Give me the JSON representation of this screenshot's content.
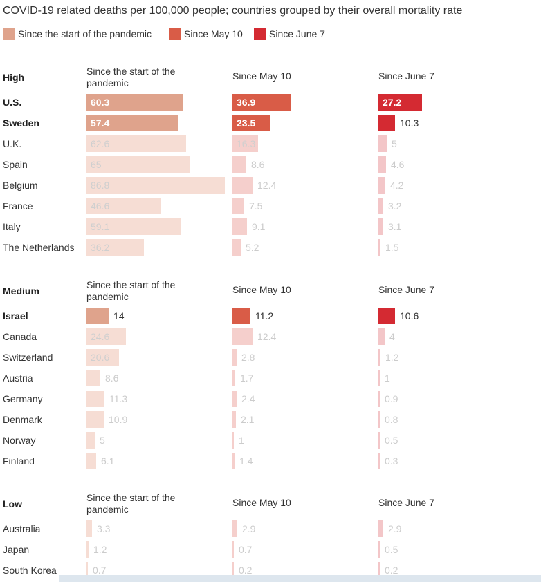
{
  "chart_data": {
    "type": "bar",
    "title": "COVID-19 related deaths per 100,000 people; countries grouped by their overall mortality rate",
    "legend": [
      {
        "label": "Since the start of the pandemic",
        "color": "#dfa38c"
      },
      {
        "label": "Since May 10",
        "color": "#d95c47"
      },
      {
        "label": "Since June 7",
        "color": "#d42a32"
      }
    ],
    "columns": [
      "Since the start of the pandemic",
      "Since May 10",
      "Since June 7"
    ],
    "groups": [
      {
        "name": "High",
        "rows": [
          {
            "country": "U.S.",
            "highlight": true,
            "values": [
              "60.3",
              "36.9",
              "27.2"
            ]
          },
          {
            "country": "Sweden",
            "highlight": true,
            "values": [
              "57.4",
              "23.5",
              "10.3"
            ]
          },
          {
            "country": "U.K.",
            "highlight": false,
            "values": [
              "62.6",
              "16.3",
              "5"
            ]
          },
          {
            "country": "Spain",
            "highlight": false,
            "values": [
              "65",
              "8.6",
              "4.6"
            ]
          },
          {
            "country": "Belgium",
            "highlight": false,
            "values": [
              "86.8",
              "12.4",
              "4.2"
            ]
          },
          {
            "country": "France",
            "highlight": false,
            "values": [
              "46.6",
              "7.5",
              "3.2"
            ]
          },
          {
            "country": "Italy",
            "highlight": false,
            "values": [
              "59.1",
              "9.1",
              "3.1"
            ]
          },
          {
            "country": "The Netherlands",
            "highlight": false,
            "values": [
              "36.2",
              "5.2",
              "1.5"
            ]
          }
        ]
      },
      {
        "name": "Medium",
        "rows": [
          {
            "country": "Israel",
            "highlight": true,
            "values": [
              "14",
              "11.2",
              "10.6"
            ]
          },
          {
            "country": "Canada",
            "highlight": false,
            "values": [
              "24.6",
              "12.4",
              "4"
            ]
          },
          {
            "country": "Switzerland",
            "highlight": false,
            "values": [
              "20.6",
              "2.8",
              "1.2"
            ]
          },
          {
            "country": "Austria",
            "highlight": false,
            "values": [
              "8.6",
              "1.7",
              "1"
            ]
          },
          {
            "country": "Germany",
            "highlight": false,
            "values": [
              "11.3",
              "2.4",
              "0.9"
            ]
          },
          {
            "country": "Denmark",
            "highlight": false,
            "values": [
              "10.9",
              "2.1",
              "0.8"
            ]
          },
          {
            "country": "Norway",
            "highlight": false,
            "values": [
              "5",
              "1",
              "0.5"
            ]
          },
          {
            "country": "Finland",
            "highlight": false,
            "values": [
              "6.1",
              "1.4",
              "0.3"
            ]
          }
        ]
      },
      {
        "name": "Low",
        "rows": [
          {
            "country": "Australia",
            "highlight": false,
            "values": [
              "3.3",
              "2.9",
              "2.9"
            ]
          },
          {
            "country": "Japan",
            "highlight": false,
            "values": [
              "1.2",
              "0.7",
              "0.5"
            ]
          },
          {
            "country": "South Korea",
            "highlight": false,
            "values": [
              "0.7",
              "0.2",
              "0.2"
            ]
          }
        ]
      }
    ],
    "muted_colors": [
      "#f6ddd4",
      "#f5cfcc",
      "#f3c6c8"
    ]
  }
}
